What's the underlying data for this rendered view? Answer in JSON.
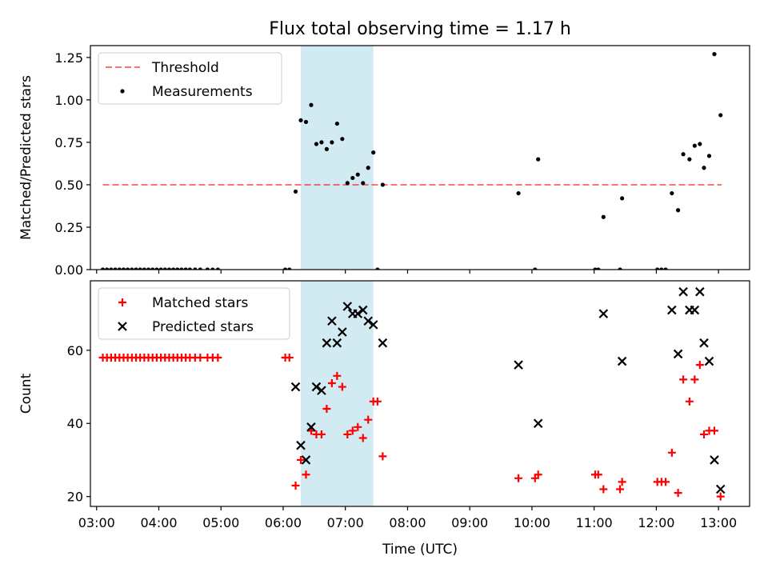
{
  "figure": {
    "title": "Flux total observing time = 1.17 h",
    "xlabel": "Time (UTC)"
  },
  "chart_data": [
    {
      "type": "scatter",
      "ylabel": "Matched/Predicted stars",
      "ylim": [
        0,
        1.32
      ],
      "xlim": [
        "02:54",
        "13:30"
      ],
      "yticks": [
        0,
        0.25,
        0.5,
        0.75,
        1.0,
        1.25
      ],
      "ytick_labels": [
        "0.00",
        "0.25",
        "0.50",
        "0.75",
        "1.00",
        "1.25"
      ],
      "shaded_interval": {
        "from": "06:17",
        "to": "07:27",
        "color": "#add8e6"
      },
      "legend": {
        "placement": "upper-left",
        "entries": [
          "Threshold",
          "Measurements"
        ]
      },
      "threshold": {
        "name": "Threshold",
        "from": "03:06",
        "to": "13:03",
        "value": 0.5,
        "color": "#ff0000",
        "style": "dashed"
      },
      "series": [
        {
          "name": "Measurements",
          "color": "#000000",
          "points": [
            {
              "x": "03:06",
              "y": 0
            },
            {
              "x": "03:10",
              "y": 0
            },
            {
              "x": "03:14",
              "y": 0
            },
            {
              "x": "03:18",
              "y": 0
            },
            {
              "x": "03:22",
              "y": 0
            },
            {
              "x": "03:26",
              "y": 0
            },
            {
              "x": "03:30",
              "y": 0
            },
            {
              "x": "03:34",
              "y": 0
            },
            {
              "x": "03:38",
              "y": 0
            },
            {
              "x": "03:42",
              "y": 0
            },
            {
              "x": "03:46",
              "y": 0
            },
            {
              "x": "03:50",
              "y": 0
            },
            {
              "x": "03:54",
              "y": 0
            },
            {
              "x": "03:58",
              "y": 0
            },
            {
              "x": "04:02",
              "y": 0
            },
            {
              "x": "04:06",
              "y": 0
            },
            {
              "x": "04:10",
              "y": 0
            },
            {
              "x": "04:14",
              "y": 0
            },
            {
              "x": "04:18",
              "y": 0
            },
            {
              "x": "04:22",
              "y": 0
            },
            {
              "x": "04:26",
              "y": 0
            },
            {
              "x": "04:30",
              "y": 0
            },
            {
              "x": "04:35",
              "y": 0
            },
            {
              "x": "04:40",
              "y": 0
            },
            {
              "x": "04:47",
              "y": 0
            },
            {
              "x": "04:52",
              "y": 0
            },
            {
              "x": "04:57",
              "y": 0
            },
            {
              "x": "06:02",
              "y": 0
            },
            {
              "x": "06:06",
              "y": 0
            },
            {
              "x": "06:12",
              "y": 0.46
            },
            {
              "x": "06:17",
              "y": 0.88
            },
            {
              "x": "06:22",
              "y": 0.87
            },
            {
              "x": "06:27",
              "y": 0.97
            },
            {
              "x": "06:32",
              "y": 0.74
            },
            {
              "x": "06:37",
              "y": 0.75
            },
            {
              "x": "06:42",
              "y": 0.71
            },
            {
              "x": "06:47",
              "y": 0.75
            },
            {
              "x": "06:52",
              "y": 0.86
            },
            {
              "x": "06:57",
              "y": 0.77
            },
            {
              "x": "07:02",
              "y": 0.51
            },
            {
              "x": "07:07",
              "y": 0.54
            },
            {
              "x": "07:12",
              "y": 0.56
            },
            {
              "x": "07:17",
              "y": 0.51
            },
            {
              "x": "07:22",
              "y": 0.6
            },
            {
              "x": "07:27",
              "y": 0.69
            },
            {
              "x": "07:31",
              "y": 0
            },
            {
              "x": "07:36",
              "y": 0.5
            },
            {
              "x": "09:47",
              "y": 0.45
            },
            {
              "x": "10:03",
              "y": 0
            },
            {
              "x": "10:06",
              "y": 0.65
            },
            {
              "x": "11:01",
              "y": 0
            },
            {
              "x": "11:04",
              "y": 0
            },
            {
              "x": "11:09",
              "y": 0.31
            },
            {
              "x": "11:25",
              "y": 0
            },
            {
              "x": "11:27",
              "y": 0.42
            },
            {
              "x": "12:01",
              "y": 0
            },
            {
              "x": "12:05",
              "y": 0
            },
            {
              "x": "12:09",
              "y": 0
            },
            {
              "x": "12:15",
              "y": 0.45
            },
            {
              "x": "12:21",
              "y": 0.35
            },
            {
              "x": "12:26",
              "y": 0.68
            },
            {
              "x": "12:32",
              "y": 0.65
            },
            {
              "x": "12:37",
              "y": 0.73
            },
            {
              "x": "12:42",
              "y": 0.74
            },
            {
              "x": "12:46",
              "y": 0.6
            },
            {
              "x": "12:51",
              "y": 0.67
            },
            {
              "x": "12:56",
              "y": 1.27
            },
            {
              "x": "13:02",
              "y": 0.91
            }
          ]
        }
      ]
    },
    {
      "type": "scatter",
      "ylabel": "Count",
      "ylim": [
        17.3,
        79
      ],
      "xlim": [
        "02:54",
        "13:30"
      ],
      "yticks": [
        20,
        40,
        60
      ],
      "ytick_labels": [
        "20",
        "40",
        "60"
      ],
      "xticks": [
        "03:00",
        "04:00",
        "05:00",
        "06:00",
        "07:00",
        "08:00",
        "09:00",
        "10:00",
        "11:00",
        "12:00",
        "13:00"
      ],
      "shaded_interval": {
        "from": "06:17",
        "to": "07:27",
        "color": "#add8e6"
      },
      "legend": {
        "placement": "upper-left",
        "entries": [
          "Matched stars",
          "Predicted stars"
        ]
      },
      "series": [
        {
          "name": "Matched stars",
          "color": "#ff0000",
          "marker": "plus",
          "points": [
            {
              "x": "03:06",
              "y": 58
            },
            {
              "x": "03:10",
              "y": 58
            },
            {
              "x": "03:14",
              "y": 58
            },
            {
              "x": "03:18",
              "y": 58
            },
            {
              "x": "03:22",
              "y": 58
            },
            {
              "x": "03:26",
              "y": 58
            },
            {
              "x": "03:30",
              "y": 58
            },
            {
              "x": "03:34",
              "y": 58
            },
            {
              "x": "03:38",
              "y": 58
            },
            {
              "x": "03:42",
              "y": 58
            },
            {
              "x": "03:46",
              "y": 58
            },
            {
              "x": "03:50",
              "y": 58
            },
            {
              "x": "03:54",
              "y": 58
            },
            {
              "x": "03:58",
              "y": 58
            },
            {
              "x": "04:02",
              "y": 58
            },
            {
              "x": "04:06",
              "y": 58
            },
            {
              "x": "04:10",
              "y": 58
            },
            {
              "x": "04:14",
              "y": 58
            },
            {
              "x": "04:18",
              "y": 58
            },
            {
              "x": "04:22",
              "y": 58
            },
            {
              "x": "04:26",
              "y": 58
            },
            {
              "x": "04:30",
              "y": 58
            },
            {
              "x": "04:35",
              "y": 58
            },
            {
              "x": "04:40",
              "y": 58
            },
            {
              "x": "04:47",
              "y": 58
            },
            {
              "x": "04:52",
              "y": 58
            },
            {
              "x": "04:57",
              "y": 58
            },
            {
              "x": "06:02",
              "y": 58
            },
            {
              "x": "06:06",
              "y": 58
            },
            {
              "x": "06:12",
              "y": 23
            },
            {
              "x": "06:17",
              "y": 30
            },
            {
              "x": "06:22",
              "y": 26
            },
            {
              "x": "06:27",
              "y": 38
            },
            {
              "x": "06:32",
              "y": 37
            },
            {
              "x": "06:37",
              "y": 37
            },
            {
              "x": "06:42",
              "y": 44
            },
            {
              "x": "06:47",
              "y": 51
            },
            {
              "x": "06:52",
              "y": 53
            },
            {
              "x": "06:57",
              "y": 50
            },
            {
              "x": "07:02",
              "y": 37
            },
            {
              "x": "07:07",
              "y": 38
            },
            {
              "x": "07:12",
              "y": 39
            },
            {
              "x": "07:17",
              "y": 36
            },
            {
              "x": "07:22",
              "y": 41
            },
            {
              "x": "07:27",
              "y": 46
            },
            {
              "x": "07:31",
              "y": 46
            },
            {
              "x": "07:36",
              "y": 31
            },
            {
              "x": "09:47",
              "y": 25
            },
            {
              "x": "10:03",
              "y": 25
            },
            {
              "x": "10:06",
              "y": 26
            },
            {
              "x": "11:01",
              "y": 26
            },
            {
              "x": "11:04",
              "y": 26
            },
            {
              "x": "11:09",
              "y": 22
            },
            {
              "x": "11:25",
              "y": 22
            },
            {
              "x": "11:27",
              "y": 24
            },
            {
              "x": "12:01",
              "y": 24
            },
            {
              "x": "12:05",
              "y": 24
            },
            {
              "x": "12:09",
              "y": 24
            },
            {
              "x": "12:15",
              "y": 32
            },
            {
              "x": "12:21",
              "y": 21
            },
            {
              "x": "12:26",
              "y": 52
            },
            {
              "x": "12:32",
              "y": 46
            },
            {
              "x": "12:37",
              "y": 52
            },
            {
              "x": "12:42",
              "y": 56
            },
            {
              "x": "12:46",
              "y": 37
            },
            {
              "x": "12:51",
              "y": 38
            },
            {
              "x": "12:56",
              "y": 38
            },
            {
              "x": "13:02",
              "y": 20
            }
          ]
        },
        {
          "name": "Predicted stars",
          "color": "#000000",
          "marker": "x",
          "points": [
            {
              "x": "06:12",
              "y": 50
            },
            {
              "x": "06:17",
              "y": 34
            },
            {
              "x": "06:22",
              "y": 30
            },
            {
              "x": "06:27",
              "y": 39
            },
            {
              "x": "06:32",
              "y": 50
            },
            {
              "x": "06:37",
              "y": 49
            },
            {
              "x": "06:42",
              "y": 62
            },
            {
              "x": "06:47",
              "y": 68
            },
            {
              "x": "06:52",
              "y": 62
            },
            {
              "x": "06:57",
              "y": 65
            },
            {
              "x": "07:02",
              "y": 72
            },
            {
              "x": "07:07",
              "y": 70
            },
            {
              "x": "07:12",
              "y": 70
            },
            {
              "x": "07:17",
              "y": 71
            },
            {
              "x": "07:22",
              "y": 68
            },
            {
              "x": "07:27",
              "y": 67
            },
            {
              "x": "07:36",
              "y": 62
            },
            {
              "x": "09:47",
              "y": 56
            },
            {
              "x": "10:06",
              "y": 40
            },
            {
              "x": "11:09",
              "y": 70
            },
            {
              "x": "11:27",
              "y": 57
            },
            {
              "x": "12:15",
              "y": 71
            },
            {
              "x": "12:21",
              "y": 59
            },
            {
              "x": "12:26",
              "y": 76
            },
            {
              "x": "12:32",
              "y": 71
            },
            {
              "x": "12:37",
              "y": 71
            },
            {
              "x": "12:42",
              "y": 76
            },
            {
              "x": "12:46",
              "y": 62
            },
            {
              "x": "12:51",
              "y": 57
            },
            {
              "x": "12:56",
              "y": 30
            },
            {
              "x": "13:02",
              "y": 22
            }
          ]
        }
      ]
    }
  ]
}
